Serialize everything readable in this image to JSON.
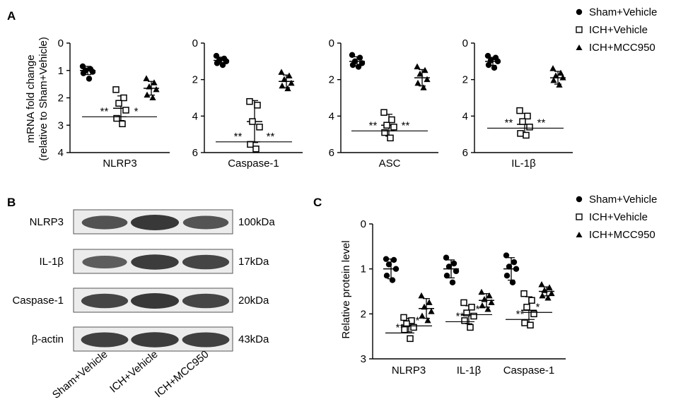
{
  "panel_labels": {
    "a": "A",
    "b": "B",
    "c": "C"
  },
  "groups": [
    "Sham+Vehicle",
    "ICH+Vehicle",
    "ICH+MCC950"
  ],
  "colors": {
    "marker": "#000000",
    "gel_background": "#ececec",
    "band": "#2e2e2e"
  },
  "chart_data": [
    {
      "type": "scatter",
      "panel": "A",
      "ylabel_line1": "mRNA fold change",
      "ylabel_line2": "(relative to Sham+Vehicle)",
      "xlabel": "NLRP3",
      "ylim": [
        0,
        4
      ],
      "yticks": [
        "0",
        "1",
        "2",
        "3",
        "4"
      ],
      "series": [
        {
          "name": "Sham+Vehicle",
          "points": [
            0.85,
            0.95,
            1.0,
            1.05,
            1.1,
            1.3
          ],
          "mean": 1.0,
          "sd": 0.15
        },
        {
          "name": "ICH+Vehicle",
          "points": [
            1.7,
            2.0,
            2.2,
            2.45,
            2.75,
            2.95
          ],
          "mean": 2.38,
          "sd": 0.45
        },
        {
          "name": "ICH+MCC950",
          "points": [
            1.3,
            1.45,
            1.6,
            1.7,
            1.9,
            2.0
          ],
          "mean": 1.65,
          "sd": 0.25
        }
      ],
      "significance": [
        [
          "**",
          0,
          1
        ],
        [
          "*",
          1,
          2
        ]
      ]
    },
    {
      "type": "scatter",
      "panel": "A",
      "xlabel": "Caspase-1",
      "ylim": [
        0,
        6
      ],
      "yticks": [
        "0",
        "2",
        "4",
        "6"
      ],
      "series": [
        {
          "name": "Sham+Vehicle",
          "points": [
            0.7,
            0.85,
            0.95,
            1.0,
            1.1,
            1.2
          ],
          "mean": 0.95,
          "sd": 0.18
        },
        {
          "name": "ICH+Vehicle",
          "points": [
            3.2,
            3.4,
            4.3,
            4.6,
            5.55,
            5.8
          ],
          "mean": 4.3,
          "sd": 1.15
        },
        {
          "name": "ICH+MCC950",
          "points": [
            1.6,
            1.8,
            2.0,
            2.2,
            2.35,
            2.5
          ],
          "mean": 2.1,
          "sd": 0.35
        }
      ],
      "significance": [
        [
          "**",
          0,
          1
        ],
        [
          "**",
          1,
          2
        ]
      ]
    },
    {
      "type": "scatter",
      "panel": "A",
      "xlabel": "ASC",
      "ylim": [
        0,
        6
      ],
      "yticks": [
        "0",
        "2",
        "4",
        "6"
      ],
      "series": [
        {
          "name": "Sham+Vehicle",
          "points": [
            0.65,
            0.8,
            1.0,
            1.1,
            1.2,
            1.3
          ],
          "mean": 1.0,
          "sd": 0.25
        },
        {
          "name": "ICH+Vehicle",
          "points": [
            3.8,
            4.2,
            4.5,
            4.6,
            4.9,
            5.2
          ],
          "mean": 4.5,
          "sd": 0.6
        },
        {
          "name": "ICH+MCC950",
          "points": [
            1.3,
            1.5,
            1.7,
            2.0,
            2.2,
            2.45
          ],
          "mean": 1.9,
          "sd": 0.45
        }
      ],
      "significance": [
        [
          "**",
          0,
          1
        ],
        [
          "**",
          1,
          2
        ]
      ]
    },
    {
      "type": "scatter",
      "panel": "A",
      "xlabel": "IL-1β",
      "ylim": [
        0,
        6
      ],
      "yticks": [
        "0",
        "2",
        "4",
        "6"
      ],
      "series": [
        {
          "name": "Sham+Vehicle",
          "points": [
            0.7,
            0.8,
            0.95,
            1.0,
            1.2,
            1.35
          ],
          "mean": 1.0,
          "sd": 0.22
        },
        {
          "name": "ICH+Vehicle",
          "points": [
            3.7,
            4.0,
            4.3,
            4.6,
            4.95,
            5.05
          ],
          "mean": 4.45,
          "sd": 0.6
        },
        {
          "name": "ICH+MCC950",
          "points": [
            1.4,
            1.65,
            1.8,
            1.9,
            2.05,
            2.3
          ],
          "mean": 1.9,
          "sd": 0.35
        }
      ],
      "significance": [
        [
          "**",
          0,
          1
        ],
        [
          "**",
          1,
          2
        ]
      ]
    },
    {
      "type": "scatter",
      "panel": "C",
      "ylabel": "Relative protein level",
      "ylim": [
        0,
        3
      ],
      "yticks": [
        "0",
        "1",
        "2",
        "3"
      ],
      "categories": [
        "NLRP3",
        "IL-1β",
        "Caspase-1"
      ],
      "series": [
        {
          "name": "Sham+Vehicle",
          "points": [
            [
              0.78,
              0.8,
              0.9,
              1.0,
              1.15,
              1.25
            ],
            [
              0.75,
              0.88,
              0.95,
              1.05,
              1.15,
              1.3
            ],
            [
              0.7,
              0.85,
              0.95,
              1.0,
              1.15,
              1.3
            ]
          ],
          "means": [
            1.0,
            1.0,
            1.0
          ],
          "sds": [
            0.22,
            0.2,
            0.25
          ]
        },
        {
          "name": "ICH+Vehicle",
          "points": [
            [
              2.08,
              2.15,
              2.22,
              2.3,
              2.35,
              2.55
            ],
            [
              1.75,
              1.85,
              1.98,
              2.05,
              2.15,
              2.3
            ],
            [
              1.55,
              1.7,
              1.85,
              2.0,
              2.2,
              2.25
            ]
          ],
          "means": [
            2.25,
            2.02,
            1.92
          ],
          "sds": [
            0.15,
            0.2,
            0.3
          ]
        },
        {
          "name": "ICH+MCC950",
          "points": [
            [
              1.6,
              1.75,
              1.85,
              1.95,
              2.05,
              2.15
            ],
            [
              1.52,
              1.6,
              1.68,
              1.75,
              1.82,
              1.9
            ],
            [
              1.35,
              1.42,
              1.48,
              1.55,
              1.6,
              1.65
            ]
          ],
          "means": [
            1.88,
            1.7,
            1.5
          ],
          "sds": [
            0.22,
            0.15,
            0.1
          ]
        }
      ],
      "significance": [
        [
          [
            "**",
            0,
            1
          ],
          [
            "*",
            1,
            2
          ]
        ],
        [
          [
            "**",
            0,
            1
          ],
          [
            "*",
            1,
            2
          ]
        ],
        [
          [
            "**",
            0,
            1
          ],
          [
            "*",
            1,
            2
          ]
        ]
      ]
    }
  ],
  "blot": {
    "rows": [
      {
        "label": "NLRP3",
        "size": "100kDa",
        "bands": [
          0.72,
          1.0,
          0.7
        ]
      },
      {
        "label": "IL-1β",
        "size": "17kDa",
        "bands": [
          0.6,
          0.95,
          0.85
        ]
      },
      {
        "label": "Caspase-1",
        "size": "20kDa",
        "bands": [
          0.85,
          1.0,
          0.85
        ]
      },
      {
        "label": "β-actin",
        "size": "43kDa",
        "bands": [
          0.9,
          0.95,
          0.9
        ]
      }
    ],
    "lane_labels": [
      "Sham+Vehicle",
      "ICH+Vehicle",
      "ICH+MCC950"
    ]
  }
}
